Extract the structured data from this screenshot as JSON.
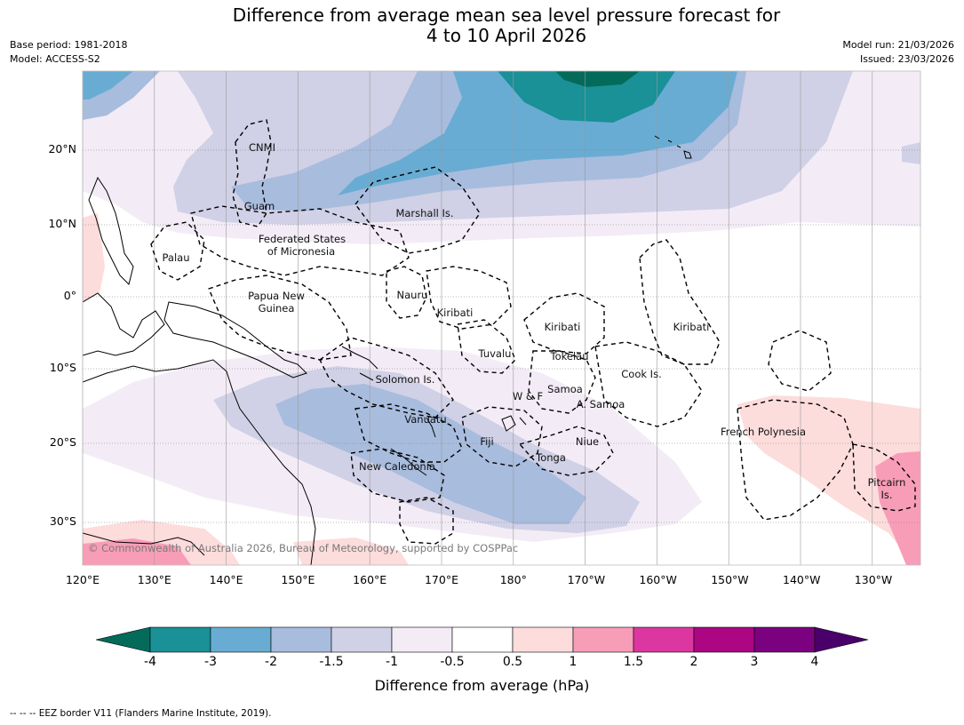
{
  "title_line1": "Difference from average mean sea level pressure forecast for",
  "title_line2": "4 to 10 April 2026",
  "base_period": "Base period: 1981-2018",
  "model": "Model: ACCESS-S2",
  "model_run": "Model run: 21/03/2026",
  "issued": "Issued: 23/03/2026",
  "credit": "© Commonwealth of Australia 2026, Bureau of Meteorology, supported by COSPPac",
  "lon_labels": [
    "120°E",
    "130°E",
    "140°E",
    "150°E",
    "160°E",
    "170°E",
    "180°",
    "170°W",
    "160°W",
    "150°W",
    "140°W",
    "130°W"
  ],
  "lat_labels": [
    "20°N",
    "10°N",
    "0°",
    "10°S",
    "20°S",
    "30°S"
  ],
  "places": [
    {
      "name": "CNMI"
    },
    {
      "name": "Guam"
    },
    {
      "name": "Marshall Is."
    },
    {
      "name": "Federated States"
    },
    {
      "name": "of Micronesia"
    },
    {
      "name": "Palau"
    },
    {
      "name": "Papua New"
    },
    {
      "name": "Guinea"
    },
    {
      "name": "Nauru"
    },
    {
      "name": "Kiribati"
    },
    {
      "name": "Kiribati"
    },
    {
      "name": "Kiribati"
    },
    {
      "name": "Tuvalu"
    },
    {
      "name": "Tokelau"
    },
    {
      "name": "Cook Is."
    },
    {
      "name": "Solomon Is."
    },
    {
      "name": "Samoa"
    },
    {
      "name": "W & F"
    },
    {
      "name": "A. Samoa"
    },
    {
      "name": "Vanuatu"
    },
    {
      "name": "Fiji"
    },
    {
      "name": "Niue"
    },
    {
      "name": "French Polynesia"
    },
    {
      "name": "Tonga"
    },
    {
      "name": "New Caledonia"
    },
    {
      "name": "Pitcairn"
    },
    {
      "name": "Is."
    }
  ],
  "colorbar": {
    "title": "Difference from average (hPa)",
    "tick_labels": [
      "-4",
      "-3",
      "-2",
      "-1.5",
      "-1",
      "-0.5",
      "0.5",
      "1",
      "1.5",
      "2",
      "3",
      "4"
    ],
    "colors": [
      "#1a9097",
      "#69acd3",
      "#a8bcdd",
      "#d0d0e6",
      "#f3ecf6",
      "#ffffff",
      "#fddcdc",
      "#f89db8",
      "#dc36a0",
      "#ad0683",
      "#7c0180"
    ],
    "under_color": "#046b5b",
    "over_color": "#4a006a"
  },
  "footnote": "--  --  -- EEZ border V11 (Flanders Marine Institute, 2019)."
}
